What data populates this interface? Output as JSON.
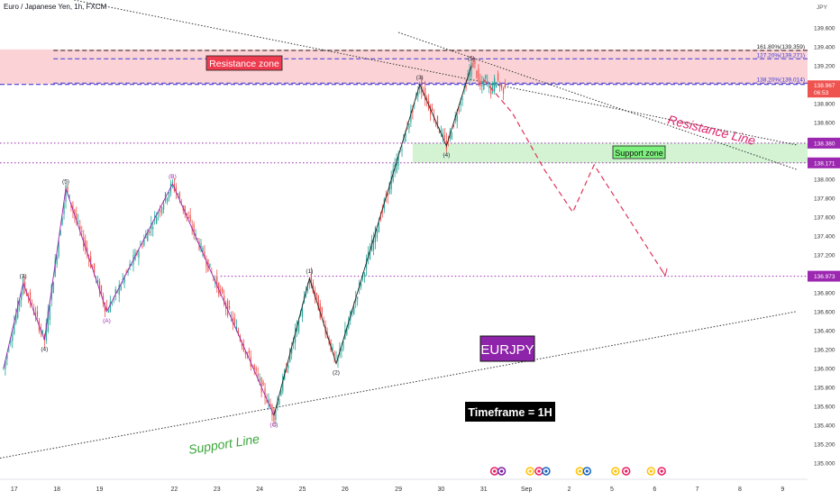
{
  "header": {
    "symbol_title": "Euro / Japanese Yen, 1h, FXCM"
  },
  "colors": {
    "up": "#26a69a",
    "down": "#ef5350",
    "resistance_fill": "#f9c4c8",
    "support_fill": "#c8f0c8",
    "wave": "#9c27b0",
    "projection": "#e0335a",
    "dotted_level": "#9c27b0",
    "fib": "#3a3ad6"
  },
  "chart_data": {
    "type": "candlestick",
    "title": "EURJPY",
    "timeframe_label": "Timeframe = 1H",
    "y_axis_unit": "JPY",
    "ylim": [
      134.95,
      139.75
    ],
    "y_ticks": [
      135.0,
      135.2,
      135.4,
      135.6,
      135.8,
      136.0,
      136.2,
      136.4,
      136.6,
      136.8,
      137.0,
      137.2,
      137.4,
      137.6,
      137.8,
      138.0,
      138.2,
      138.4,
      138.6,
      138.8,
      139.0,
      139.2,
      139.4,
      139.6
    ],
    "x_labels": [
      "17",
      "18",
      "19",
      "22",
      "23",
      "24",
      "25",
      "26",
      "29",
      "30",
      "31",
      "Sep",
      "2",
      "5",
      "6",
      "7",
      "8",
      "9"
    ],
    "x_label_index": [
      0,
      24,
      48,
      90,
      114,
      138,
      162,
      186,
      216,
      240,
      264,
      288,
      312,
      336,
      360,
      384,
      408,
      432
    ],
    "x_range": [
      -8,
      446
    ],
    "last_candle_index": 276,
    "current_price": "138.967",
    "countdown": "06:53",
    "wave_path": [
      [
        -6,
        136.0
      ],
      [
        5,
        136.9
      ],
      [
        17,
        136.3
      ],
      [
        29,
        137.9
      ],
      [
        52,
        136.6
      ],
      [
        89,
        137.95
      ],
      [
        146,
        135.5
      ],
      [
        166,
        136.95
      ],
      [
        181,
        136.05
      ],
      [
        228,
        139.0
      ],
      [
        243,
        138.35
      ],
      [
        257,
        139.2
      ]
    ],
    "wave_labels": [
      {
        "text": "(3)",
        "x": 5,
        "y": 136.9,
        "pos": "above"
      },
      {
        "text": "(4)",
        "x": 17,
        "y": 136.3,
        "pos": "below"
      },
      {
        "text": "(5)",
        "x": 29,
        "y": 137.9,
        "pos": "above"
      },
      {
        "text": "(A)",
        "x": 52,
        "y": 136.6,
        "pos": "below"
      },
      {
        "text": "(B)",
        "x": 89,
        "y": 137.95,
        "pos": "above"
      },
      {
        "text": "(C)",
        "x": 146,
        "y": 135.5,
        "pos": "below"
      },
      {
        "text": "(1)",
        "x": 166,
        "y": 136.95,
        "pos": "above"
      },
      {
        "text": "(2)",
        "x": 181,
        "y": 136.05,
        "pos": "below"
      },
      {
        "text": "(3)",
        "x": 228,
        "y": 139.0,
        "pos": "above"
      },
      {
        "text": "(4)",
        "x": 243,
        "y": 138.35,
        "pos": "below"
      },
      {
        "text": "(5)",
        "x": 257,
        "y": 139.2,
        "pos": "above"
      }
    ],
    "resistance_zone": {
      "label": "Resistance zone",
      "low": 139.0,
      "high": 139.37
    },
    "support_zone": {
      "label": "Support zone",
      "low": 138.17,
      "high": 138.38
    },
    "levels": [
      {
        "price": 138.38,
        "label": "138.380"
      },
      {
        "price": 138.171,
        "label": "138.171"
      },
      {
        "price": 136.973,
        "label": "136.973"
      }
    ],
    "fib_levels": [
      {
        "price": 139.359,
        "label": "161.80%(139.359)"
      },
      {
        "price": 139.271,
        "label": "127.20%(139.271)"
      },
      {
        "price": 139.014,
        "label": "138.20%(139.014)"
      }
    ],
    "resistance_line": {
      "label": "Resistance Line",
      "points": [
        [
          -8,
          140.05
        ],
        [
          440,
          138.36
        ]
      ]
    },
    "resistance_line_2": {
      "points": [
        [
          216,
          139.55
        ],
        [
          440,
          138.1
        ]
      ]
    },
    "support_line": {
      "label": "Support Line",
      "points": [
        [
          -8,
          135.05
        ],
        [
          440,
          136.6
        ]
      ]
    },
    "projection_path": [
      [
        264,
        139.05
      ],
      [
        280,
        138.7
      ],
      [
        298,
        138.1
      ],
      [
        314,
        137.65
      ],
      [
        326,
        138.15
      ],
      [
        366,
        136.98
      ]
    ]
  }
}
